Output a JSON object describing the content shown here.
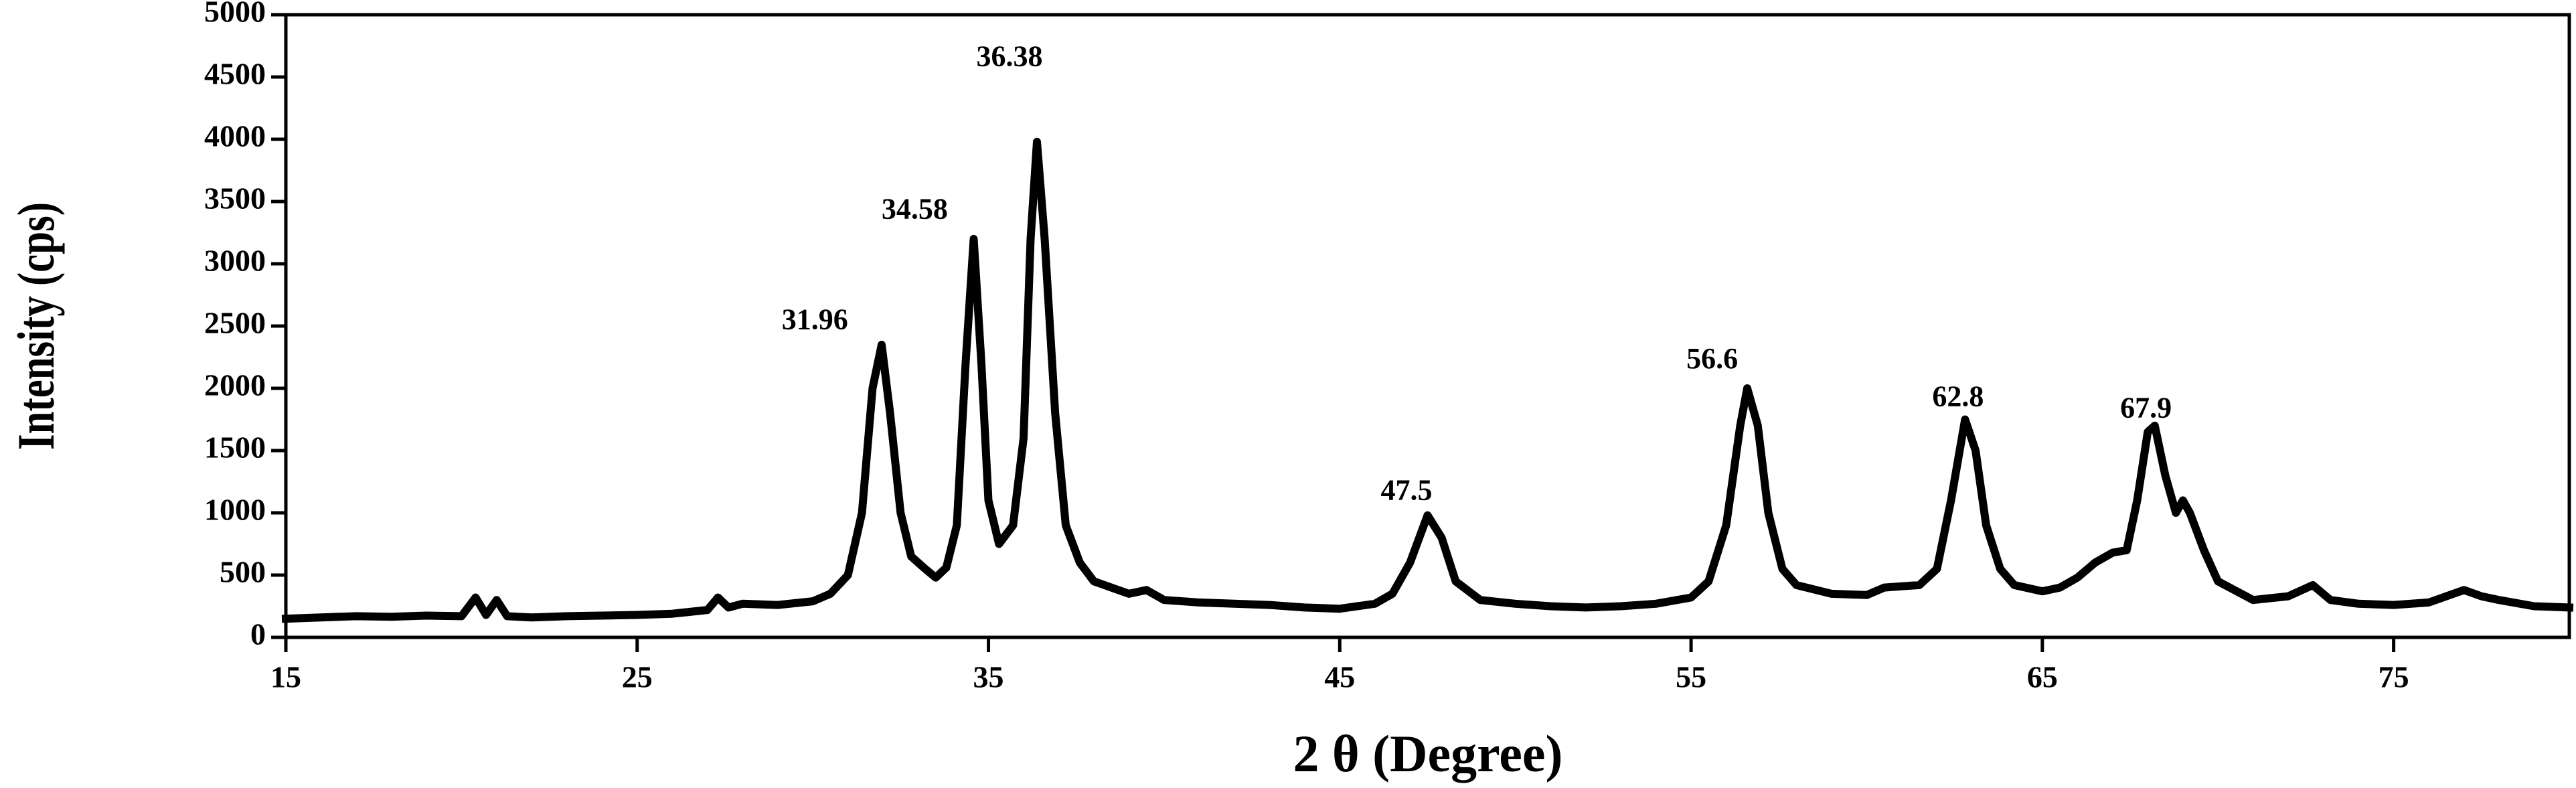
{
  "chart_data": {
    "type": "line",
    "x_label": "2 θ (Degree)",
    "y_label": "Intensity (cps)",
    "color": "#000000",
    "x": [
      15,
      16,
      17,
      18,
      19,
      20,
      20.4,
      20.7,
      21,
      21.3,
      22,
      23,
      24,
      25,
      26,
      27,
      27.3,
      27.6,
      28,
      29,
      30,
      30.5,
      31,
      31.4,
      31.7,
      31.96,
      32.2,
      32.5,
      32.8,
      33.2,
      33.5,
      33.8,
      34.1,
      34.35,
      34.58,
      34.8,
      35.0,
      35.3,
      35.7,
      36.0,
      36.2,
      36.38,
      36.6,
      36.9,
      37.2,
      37.6,
      38,
      39,
      39.5,
      40,
      41,
      42,
      43,
      44,
      45,
      46,
      46.5,
      47,
      47.5,
      47.9,
      48.3,
      49,
      50,
      51,
      52,
      53,
      54,
      55,
      55.5,
      56,
      56.4,
      56.6,
      56.9,
      57.2,
      57.6,
      58,
      59,
      60,
      60.5,
      61,
      61.5,
      62,
      62.4,
      62.8,
      63.1,
      63.4,
      63.8,
      64.2,
      65,
      65.5,
      66,
      66.5,
      67,
      67.4,
      67.7,
      68.0,
      68.2,
      68.5,
      68.8,
      69,
      69.2,
      69.6,
      70,
      71,
      72,
      72.7,
      73.2,
      74,
      75,
      76,
      77,
      77.5,
      78,
      79,
      80
    ],
    "values": [
      150,
      160,
      170,
      165,
      175,
      170,
      320,
      180,
      300,
      170,
      160,
      170,
      175,
      180,
      190,
      220,
      320,
      240,
      270,
      260,
      290,
      350,
      500,
      1000,
      2000,
      2350,
      1800,
      1000,
      650,
      550,
      480,
      560,
      900,
      2200,
      3200,
      2200,
      1100,
      750,
      900,
      1600,
      3200,
      3980,
      3200,
      1800,
      900,
      600,
      450,
      350,
      380,
      300,
      280,
      270,
      260,
      240,
      230,
      270,
      350,
      600,
      980,
      800,
      450,
      300,
      270,
      250,
      240,
      250,
      270,
      320,
      450,
      900,
      1700,
      2000,
      1700,
      1000,
      550,
      420,
      350,
      340,
      400,
      410,
      420,
      550,
      1100,
      1750,
      1500,
      900,
      550,
      420,
      370,
      400,
      480,
      600,
      680,
      700,
      1100,
      1650,
      1700,
      1300,
      1000,
      1100,
      1000,
      700,
      450,
      300,
      330,
      420,
      300,
      270,
      260,
      280,
      380,
      330,
      300,
      250,
      240
    ],
    "annotations": [
      {
        "text": "31.96",
        "x": 30.06,
        "y": 2530
      },
      {
        "text": "34.58",
        "x": 32.9,
        "y": 3417
      },
      {
        "text": "36.38",
        "x": 35.6,
        "y": 4644
      },
      {
        "text": "47.5",
        "x": 46.9,
        "y": 1160
      },
      {
        "text": "56.6",
        "x": 55.6,
        "y": 2216
      },
      {
        "text": "62.8",
        "x": 62.6,
        "y": 1913
      },
      {
        "text": "67.9",
        "x": 67.95,
        "y": 1820
      }
    ],
    "xlim": [
      15,
      80
    ],
    "xticks": [
      15,
      25,
      35,
      45,
      55,
      65,
      75
    ],
    "ylim": [
      0,
      5000
    ],
    "yticks": [
      0,
      500,
      1000,
      1500,
      2000,
      2500,
      3000,
      3500,
      4000,
      4500,
      5000
    ]
  }
}
